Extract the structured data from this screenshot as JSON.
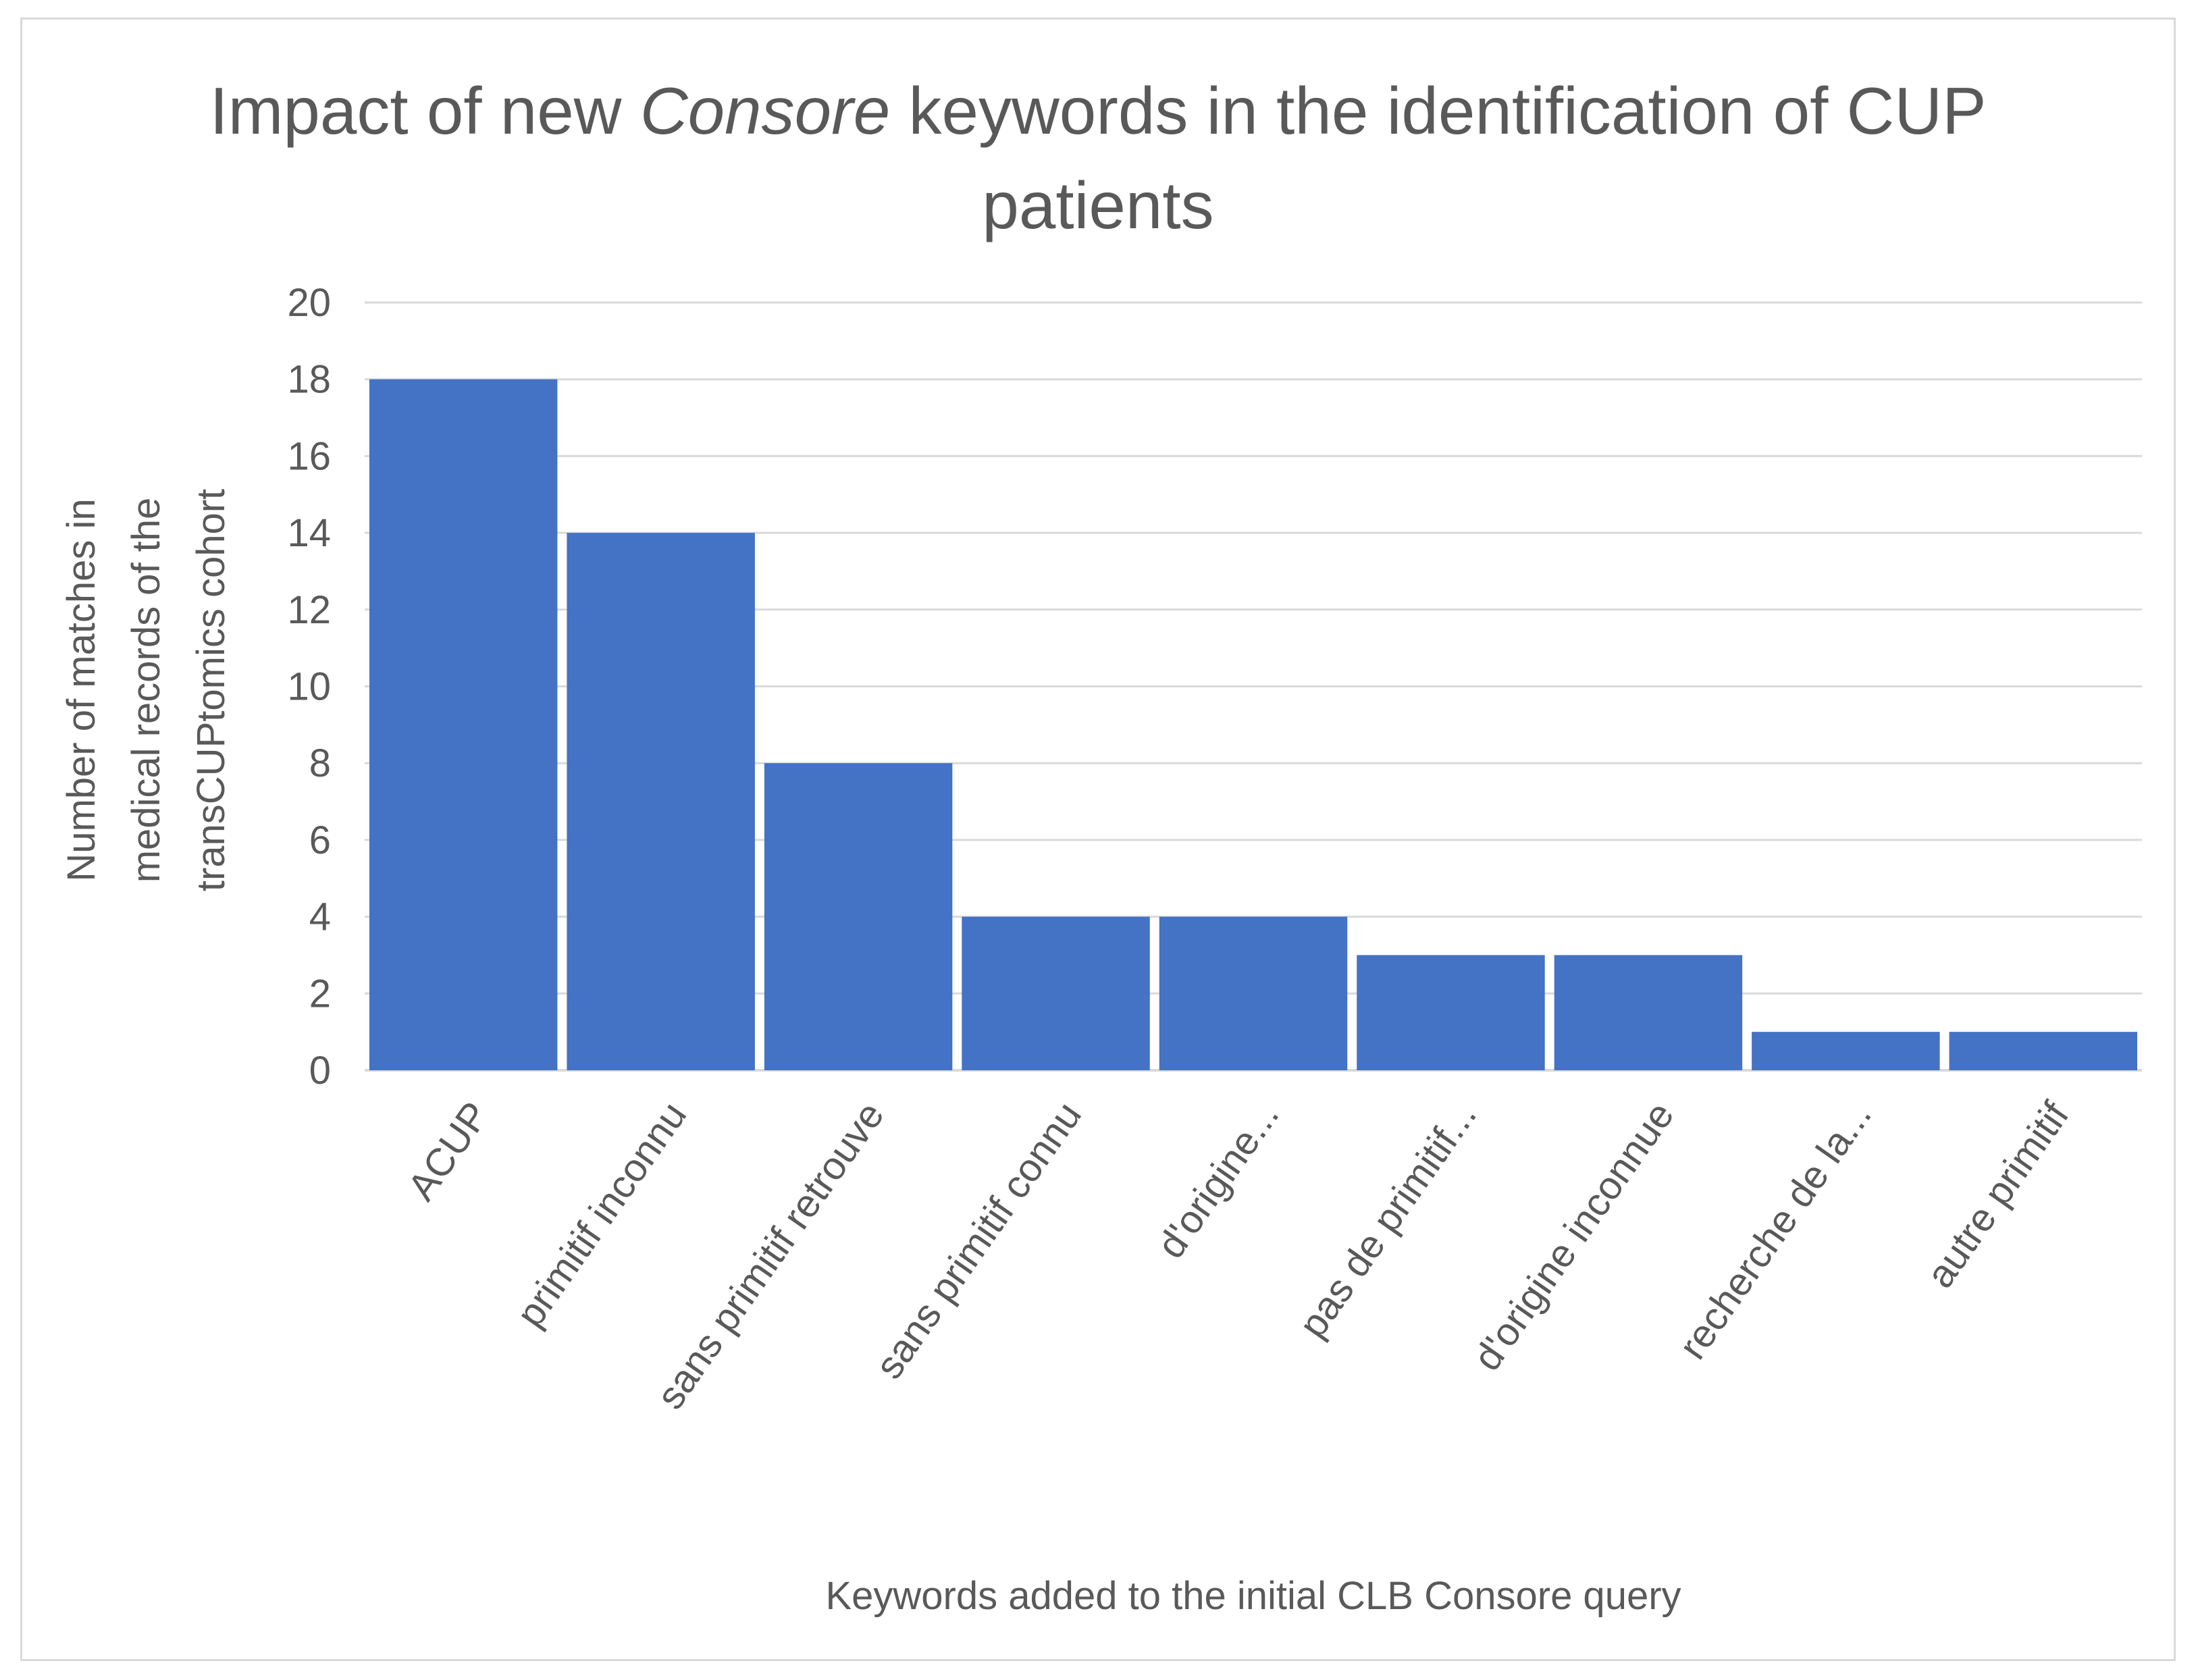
{
  "chart_data": {
    "type": "bar",
    "title_line1_a": "Impact of new ",
    "title_line1_em": "Consore",
    "title_line1_b": " keywords in the identification of CUP",
    "title_line2": "patients",
    "xlabel": "Keywords added to the initial CLB Consore query",
    "ylabel_lines": [
      "Number of matches in",
      "medical records of the",
      "transCUPtomics cohort"
    ],
    "categories": [
      "ACUP",
      "primitif inconnu",
      "sans primitif retrouve",
      "sans primitif connu",
      "d'origine...",
      "pas de primitif...",
      "d'origine inconnue",
      "recherche de la...",
      "autre primitif"
    ],
    "values": [
      18,
      14,
      8,
      4,
      4,
      3,
      3,
      1,
      1
    ],
    "ylim": [
      0,
      20
    ],
    "yticks": [
      0,
      2,
      4,
      6,
      8,
      10,
      12,
      14,
      16,
      18,
      20
    ],
    "grid": true,
    "bar_color": "#4472C4",
    "grid_color": "#d9d9d9"
  }
}
